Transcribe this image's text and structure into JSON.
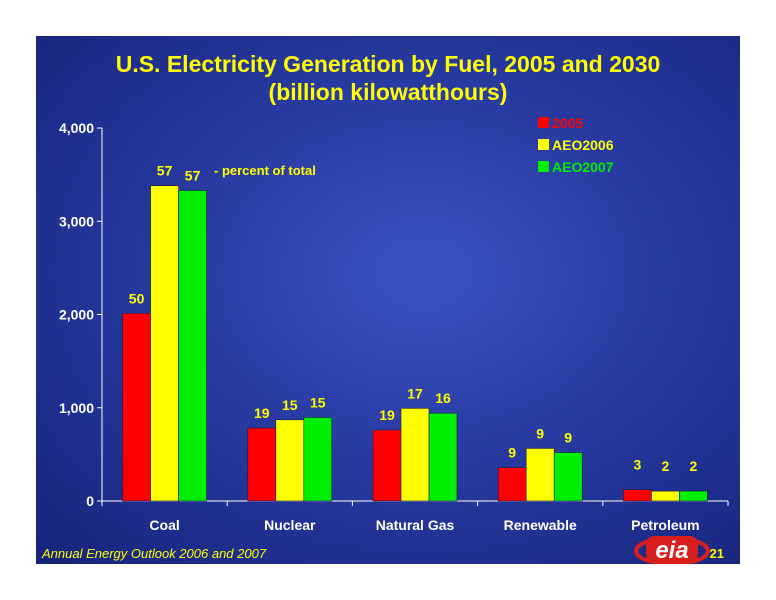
{
  "chart_data": {
    "type": "bar",
    "title": "U.S. Electricity Generation by Fuel, 2005 and 2030",
    "subtitle": "(billion kilowatthours)",
    "categories": [
      "Coal",
      "Nuclear",
      "Natural Gas",
      "Renewable",
      "Petroleum"
    ],
    "series": [
      {
        "name": "2005",
        "color": "#ff0000",
        "values": [
          2013,
          782,
          761,
          358,
          122
        ],
        "labels": [
          "50",
          "19",
          "19",
          "9",
          "3"
        ]
      },
      {
        "name": "AEO2006",
        "color": "#ffff00",
        "values": [
          3381,
          871,
          994,
          564,
          106
        ],
        "labels": [
          "57",
          "15",
          "17",
          "9",
          "2"
        ]
      },
      {
        "name": "AEO2007",
        "color": "#00ee00",
        "values": [
          3330,
          896,
          942,
          520,
          107
        ],
        "labels": [
          "57",
          "15",
          "16",
          "9",
          "2"
        ]
      }
    ],
    "ylim": [
      0,
      4000
    ],
    "yticks": [
      "0",
      "1,000",
      "2,000",
      "3,000",
      "4,000"
    ],
    "ytick_values": [
      0,
      1000,
      2000,
      3000,
      4000
    ],
    "annotation": "-  percent of total",
    "legend_position": "top-right",
    "grid": false
  },
  "footer": {
    "source": "Annual Energy Outlook 2006 and 2007",
    "page_number": "21",
    "logo_text": "eia"
  },
  "colors": {
    "background": "#2a3da5",
    "title": "#ffff00",
    "text": "#ffffff",
    "logo": "#d81e1e"
  }
}
